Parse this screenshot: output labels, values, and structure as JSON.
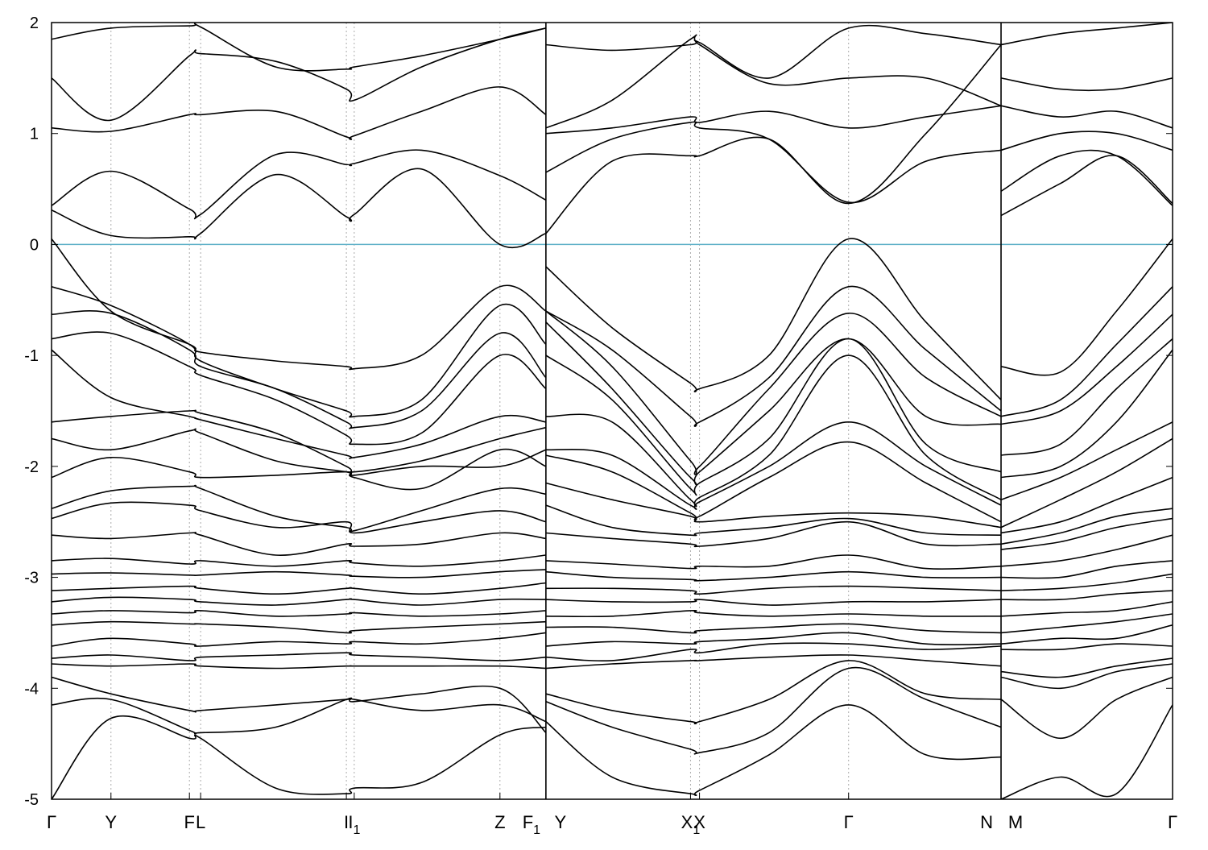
{
  "chart_data": {
    "type": "line",
    "title": "",
    "xlabel": "",
    "ylabel": "",
    "ylim": [
      -5,
      2
    ],
    "yticks": [
      "2",
      "1",
      "0",
      "-1",
      "-2",
      "-3",
      "-4",
      "-5"
    ],
    "ytick_values": [
      2,
      1,
      0,
      -1,
      -2,
      -3,
      -4,
      -5
    ],
    "grid": "vertical dotted lines at high-symmetry points",
    "legend": "none",
    "colors": {
      "bands": "#000000",
      "fermi_level": "#5fb0c8",
      "grid": "#aaaaaa"
    },
    "fermi_level": 0,
    "x_range": [
      0,
      1
    ],
    "high_symmetry_points": [
      {
        "label": "Γ",
        "sub": "",
        "x": 0.0
      },
      {
        "label": "Y",
        "sub": "",
        "x": 0.053
      },
      {
        "label": "F",
        "sub": "",
        "x": 0.123
      },
      {
        "label": "L",
        "sub": "",
        "x": 0.133
      },
      {
        "label": "I",
        "sub": "",
        "x": 0.263
      },
      {
        "label": "I",
        "sub": "1",
        "x": 0.27
      },
      {
        "label": "Z",
        "sub": "",
        "x": 0.4
      },
      {
        "label": "F",
        "sub": "1",
        "x": 0.441
      },
      {
        "label": "Y",
        "sub": "",
        "x": 0.441
      },
      {
        "label": "X",
        "sub": "1",
        "x": 0.57
      },
      {
        "label": "X",
        "sub": "",
        "x": 0.578
      },
      {
        "label": "Γ",
        "sub": "",
        "x": 0.711
      },
      {
        "label": "N",
        "sub": "",
        "x": 0.847
      },
      {
        "label": "M",
        "sub": "",
        "x": 0.847
      },
      {
        "label": "Γ",
        "sub": "",
        "x": 1.0
      }
    ],
    "segment_breaks": [
      0.441,
      0.847
    ],
    "segments": [
      {
        "xs": [
          0,
          0.053,
          0.123,
          0.133,
          0.2,
          0.263,
          0.27,
          0.33,
          0.4,
          0.441
        ],
        "bands": [
          [
            1.85,
            1.95,
            1.97,
            1.96,
            1.6,
            1.58,
            1.6,
            1.7,
            1.85,
            1.95
          ],
          [
            1.5,
            1.12,
            1.7,
            1.72,
            1.65,
            1.4,
            1.3,
            1.6,
            1.85,
            1.95
          ],
          [
            1.05,
            1.02,
            1.17,
            1.17,
            1.2,
            0.97,
            0.98,
            1.2,
            1.42,
            1.17
          ],
          [
            0.35,
            0.66,
            0.32,
            0.27,
            0.81,
            0.72,
            0.73,
            0.85,
            0.62,
            0.4
          ],
          [
            0.31,
            0.08,
            0.07,
            0.1,
            0.63,
            0.25,
            0.27,
            0.68,
            0.0,
            0.1
          ],
          [
            0.05,
            -0.6,
            -0.9,
            -0.97,
            -1.05,
            -1.1,
            -1.12,
            -1.0,
            -0.38,
            -0.6
          ],
          [
            -0.38,
            -0.55,
            -0.9,
            -1.05,
            -1.3,
            -1.5,
            -1.55,
            -1.4,
            -0.55,
            -0.9
          ],
          [
            -0.63,
            -0.62,
            -0.95,
            -1.1,
            -1.3,
            -1.6,
            -1.65,
            -1.5,
            -0.8,
            -1.2
          ],
          [
            -0.85,
            -0.8,
            -1.1,
            -1.18,
            -1.4,
            -1.72,
            -1.8,
            -1.7,
            -1.0,
            -1.3
          ],
          [
            -0.95,
            -1.38,
            -1.55,
            -1.58,
            -1.75,
            -1.9,
            -1.92,
            -1.8,
            -1.55,
            -1.6
          ],
          [
            -1.6,
            -1.55,
            -1.5,
            -1.52,
            -1.7,
            -2.0,
            -2.05,
            -1.95,
            -1.75,
            -1.65
          ],
          [
            -1.75,
            -1.85,
            -1.68,
            -1.7,
            -1.95,
            -2.05,
            -2.08,
            -2.0,
            -2.0,
            -1.85
          ],
          [
            -2.1,
            -1.92,
            -2.05,
            -2.1,
            -2.08,
            -2.05,
            -2.1,
            -2.2,
            -1.85,
            -2.0
          ],
          [
            -2.38,
            -2.22,
            -2.18,
            -2.2,
            -2.45,
            -2.55,
            -2.58,
            -2.4,
            -2.2,
            -2.25
          ],
          [
            -2.47,
            -2.33,
            -2.35,
            -2.4,
            -2.55,
            -2.5,
            -2.6,
            -2.5,
            -2.4,
            -2.5
          ],
          [
            -2.62,
            -2.65,
            -2.6,
            -2.62,
            -2.8,
            -2.7,
            -2.72,
            -2.7,
            -2.6,
            -2.65
          ],
          [
            -2.85,
            -2.83,
            -2.88,
            -2.85,
            -2.9,
            -2.85,
            -2.87,
            -2.9,
            -2.85,
            -2.8
          ],
          [
            -2.97,
            -2.96,
            -2.98,
            -2.98,
            -2.95,
            -2.98,
            -2.99,
            -3.0,
            -2.95,
            -2.93
          ],
          [
            -3.12,
            -3.1,
            -3.08,
            -3.1,
            -3.15,
            -3.1,
            -3.1,
            -3.15,
            -3.1,
            -3.05
          ],
          [
            -3.22,
            -3.18,
            -3.2,
            -3.22,
            -3.25,
            -3.2,
            -3.2,
            -3.25,
            -3.2,
            -3.2
          ],
          [
            -3.33,
            -3.3,
            -3.32,
            -3.3,
            -3.35,
            -3.33,
            -3.32,
            -3.35,
            -3.33,
            -3.3
          ],
          [
            -3.43,
            -3.4,
            -3.42,
            -3.42,
            -3.45,
            -3.5,
            -3.48,
            -3.45,
            -3.42,
            -3.4
          ],
          [
            -3.62,
            -3.55,
            -3.6,
            -3.62,
            -3.58,
            -3.6,
            -3.58,
            -3.6,
            -3.55,
            -3.5
          ],
          [
            -3.73,
            -3.7,
            -3.75,
            -3.72,
            -3.7,
            -3.68,
            -3.7,
            -3.72,
            -3.75,
            -3.72
          ],
          [
            -3.78,
            -3.8,
            -3.78,
            -3.8,
            -3.82,
            -3.8,
            -3.8,
            -3.8,
            -3.8,
            -3.82
          ],
          [
            -3.9,
            -4.05,
            -4.2,
            -4.2,
            -4.15,
            -4.1,
            -4.1,
            -4.2,
            -4.15,
            -4.3
          ],
          [
            -4.15,
            -4.1,
            -4.38,
            -4.4,
            -4.35,
            -4.1,
            -4.12,
            -4.05,
            -4.0,
            -4.4
          ],
          [
            -5.0,
            -4.27,
            -4.45,
            -4.45,
            -4.9,
            -4.95,
            -4.9,
            -4.85,
            -4.42,
            -4.35
          ]
        ]
      },
      {
        "xs": [
          0.441,
          0.5,
          0.57,
          0.578,
          0.64,
          0.711,
          0.78,
          0.847
        ],
        "bands": [
          [
            1.8,
            1.75,
            1.8,
            1.82,
            1.5,
            1.95,
            1.9,
            1.8
          ],
          [
            1.05,
            1.3,
            1.85,
            1.8,
            1.45,
            1.5,
            1.5,
            1.25
          ],
          [
            1.0,
            1.05,
            1.15,
            1.1,
            1.2,
            1.05,
            1.15,
            1.25
          ],
          [
            0.65,
            0.95,
            1.1,
            1.05,
            0.95,
            0.38,
            0.75,
            0.85
          ],
          [
            0.1,
            0.75,
            0.8,
            0.8,
            0.95,
            0.37,
            1.0,
            1.8
          ],
          [
            -0.2,
            -0.75,
            -1.25,
            -1.3,
            -1.0,
            0.05,
            -0.7,
            -1.4
          ],
          [
            -0.6,
            -0.95,
            -1.55,
            -1.6,
            -1.2,
            -0.38,
            -0.95,
            -1.5
          ],
          [
            -0.6,
            -1.1,
            -1.95,
            -2.0,
            -1.3,
            -0.62,
            -1.2,
            -1.55
          ],
          [
            -0.7,
            -1.3,
            -2.1,
            -2.05,
            -1.5,
            -0.85,
            -1.55,
            -1.62
          ],
          [
            -1.0,
            -1.4,
            -2.2,
            -2.15,
            -1.75,
            -0.85,
            -1.8,
            -2.05
          ],
          [
            -1.55,
            -1.6,
            -2.3,
            -2.28,
            -1.9,
            -1.0,
            -1.9,
            -2.3
          ],
          [
            -1.85,
            -1.9,
            -2.35,
            -2.32,
            -2.0,
            -1.6,
            -2.0,
            -2.35
          ],
          [
            -1.9,
            -2.05,
            -2.42,
            -2.45,
            -2.1,
            -1.78,
            -2.15,
            -2.5
          ],
          [
            -2.15,
            -2.3,
            -2.45,
            -2.5,
            -2.45,
            -2.42,
            -2.45,
            -2.55
          ],
          [
            -2.35,
            -2.55,
            -2.62,
            -2.6,
            -2.55,
            -2.47,
            -2.6,
            -2.62
          ],
          [
            -2.6,
            -2.65,
            -2.7,
            -2.72,
            -2.65,
            -2.5,
            -2.7,
            -2.7
          ],
          [
            -2.85,
            -2.88,
            -2.92,
            -2.9,
            -2.9,
            -2.8,
            -2.92,
            -2.9
          ],
          [
            -2.95,
            -3.0,
            -3.02,
            -3.03,
            -3.0,
            -2.95,
            -3.0,
            -3.0
          ],
          [
            -3.1,
            -3.1,
            -3.12,
            -3.15,
            -3.1,
            -3.08,
            -3.1,
            -3.12
          ],
          [
            -3.2,
            -3.22,
            -3.22,
            -3.2,
            -3.25,
            -3.22,
            -3.22,
            -3.2
          ],
          [
            -3.35,
            -3.35,
            -3.3,
            -3.32,
            -3.35,
            -3.33,
            -3.35,
            -3.35
          ],
          [
            -3.45,
            -3.45,
            -3.5,
            -3.48,
            -3.45,
            -3.42,
            -3.48,
            -3.5
          ],
          [
            -3.62,
            -3.58,
            -3.6,
            -3.58,
            -3.55,
            -3.5,
            -3.6,
            -3.6
          ],
          [
            -3.72,
            -3.75,
            -3.65,
            -3.68,
            -3.6,
            -3.6,
            -3.65,
            -3.62
          ],
          [
            -3.82,
            -3.78,
            -3.75,
            -3.75,
            -3.72,
            -3.7,
            -3.75,
            -3.8
          ],
          [
            -4.05,
            -4.2,
            -4.3,
            -4.3,
            -4.1,
            -3.75,
            -4.05,
            -4.1
          ],
          [
            -4.12,
            -4.35,
            -4.55,
            -4.58,
            -4.4,
            -3.82,
            -4.1,
            -4.35
          ],
          [
            -4.3,
            -4.8,
            -4.95,
            -4.92,
            -4.6,
            -4.15,
            -4.6,
            -4.62
          ]
        ]
      },
      {
        "xs": [
          0.847,
          0.9,
          0.95,
          1.0
        ],
        "bands": [
          [
            1.8,
            1.9,
            1.95,
            2.0
          ],
          [
            1.5,
            1.4,
            1.4,
            1.5
          ],
          [
            1.25,
            1.15,
            1.2,
            1.05
          ],
          [
            0.85,
            1.0,
            1.0,
            0.85
          ],
          [
            0.48,
            0.8,
            0.8,
            0.35
          ],
          [
            0.26,
            0.55,
            0.8,
            0.37
          ],
          [
            -1.1,
            -1.15,
            -0.6,
            0.05
          ],
          [
            -1.55,
            -1.4,
            -0.9,
            -0.38
          ],
          [
            -1.62,
            -1.5,
            -1.1,
            -0.63
          ],
          [
            -1.9,
            -1.8,
            -1.3,
            -0.85
          ],
          [
            -2.1,
            -2.0,
            -1.6,
            -0.95
          ],
          [
            -2.3,
            -2.1,
            -1.85,
            -1.6
          ],
          [
            -2.55,
            -2.3,
            -2.05,
            -1.75
          ],
          [
            -2.6,
            -2.5,
            -2.3,
            -2.1
          ],
          [
            -2.7,
            -2.6,
            -2.45,
            -2.38
          ],
          [
            -2.75,
            -2.68,
            -2.55,
            -2.47
          ],
          [
            -2.9,
            -2.85,
            -2.75,
            -2.62
          ],
          [
            -3.0,
            -3.0,
            -2.9,
            -2.85
          ],
          [
            -3.12,
            -3.1,
            -3.05,
            -2.97
          ],
          [
            -3.2,
            -3.2,
            -3.15,
            -3.12
          ],
          [
            -3.35,
            -3.32,
            -3.3,
            -3.22
          ],
          [
            -3.5,
            -3.45,
            -3.4,
            -3.33
          ],
          [
            -3.6,
            -3.55,
            -3.55,
            -3.43
          ],
          [
            -3.65,
            -3.65,
            -3.6,
            -3.62
          ],
          [
            -3.85,
            -3.9,
            -3.8,
            -3.73
          ],
          [
            -3.9,
            -4.0,
            -3.85,
            -3.78
          ],
          [
            -4.1,
            -4.45,
            -4.1,
            -3.9
          ],
          [
            -5.0,
            -4.8,
            -4.95,
            -4.15
          ]
        ]
      }
    ]
  }
}
